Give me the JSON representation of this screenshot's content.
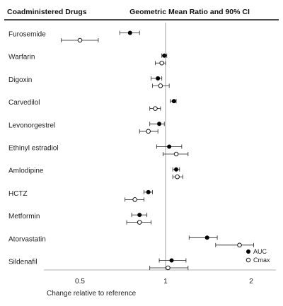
{
  "chart_data": {
    "type": "scatter",
    "title": "Geometric Mean Ratio and 90% CI",
    "row_header": "Coadministered Drugs",
    "xlabel": "Change relative to reference",
    "x_scale": "log",
    "xlim": [
      0.35,
      2.6
    ],
    "x_ticks": [
      {
        "value": 0.5,
        "label": "0.5"
      },
      {
        "value": 1,
        "label": "1"
      },
      {
        "value": 2,
        "label": "2"
      }
    ],
    "reference_line": 1,
    "grid": false,
    "legend_position": "bottom-right",
    "categories": [
      "Furosemide",
      "Warfarin",
      "Digoxin",
      "Carvedilol",
      "Levonorgestrel",
      "Ethinyl estradiol",
      "Amlodipine",
      "HCTZ",
      "Metformin",
      "Atorvastatin",
      "Sildenafil"
    ],
    "series": [
      {
        "name": "AUC",
        "marker": "filled-circle",
        "color": "#000000",
        "values": [
          0.75,
          0.99,
          0.94,
          1.07,
          0.95,
          1.03,
          1.09,
          0.87,
          0.81,
          1.4,
          1.05
        ],
        "ci_low": [
          0.69,
          0.97,
          0.89,
          1.04,
          0.88,
          0.93,
          1.06,
          0.84,
          0.76,
          1.21,
          0.95
        ],
        "ci_high": [
          0.81,
          1.01,
          0.97,
          1.09,
          0.99,
          1.14,
          1.12,
          0.9,
          0.86,
          1.52,
          1.18
        ]
      },
      {
        "name": "Cmax",
        "marker": "open-circle",
        "color": "#000000",
        "values": [
          0.5,
          0.97,
          0.96,
          0.92,
          0.87,
          1.09,
          1.1,
          0.78,
          0.81,
          1.82,
          1.02
        ],
        "ci_low": [
          0.43,
          0.92,
          0.9,
          0.88,
          0.81,
          0.98,
          1.06,
          0.72,
          0.73,
          1.5,
          0.88
        ],
        "ci_high": [
          0.58,
          1.0,
          1.03,
          0.96,
          0.94,
          1.2,
          1.15,
          0.84,
          0.89,
          2.04,
          1.2
        ]
      }
    ]
  }
}
